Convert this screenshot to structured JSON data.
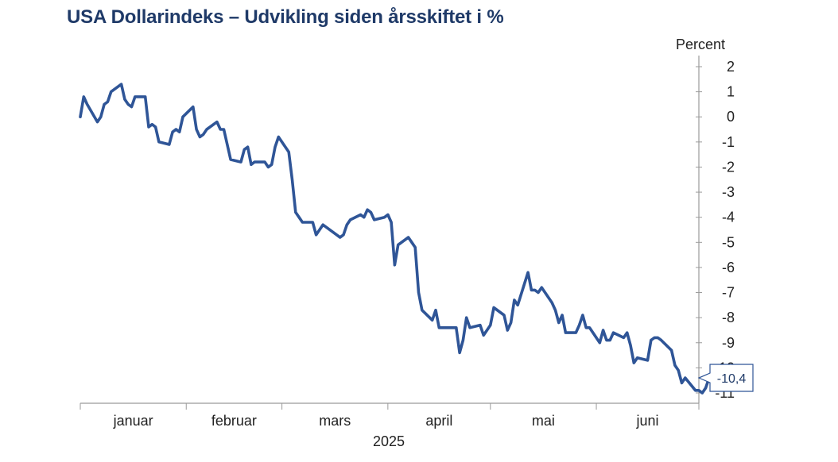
{
  "chart_data": {
    "type": "line",
    "title": "USA Dollarindeks – Udvikling siden årsskiftet i %",
    "xlabel": "2025",
    "ylabel": "Percent",
    "ylim": [
      -11,
      2
    ],
    "yticks": [
      2,
      1,
      0,
      -1,
      -2,
      -3,
      -4,
      -5,
      -6,
      -7,
      -8,
      -9,
      -10,
      -11
    ],
    "xlim": [
      "2025-01-01",
      "2025-06-30"
    ],
    "months": [
      "januar",
      "februar",
      "mars",
      "april",
      "mai",
      "juni"
    ],
    "grid": false,
    "y_axis_position": "right",
    "color": "#2f5597",
    "last_value_label": "-10,4",
    "series": [
      {
        "points": [
          [
            "2025-01-01",
            0.0
          ],
          [
            "2025-01-02",
            0.8
          ],
          [
            "2025-01-03",
            0.5
          ],
          [
            "2025-01-06",
            -0.2
          ],
          [
            "2025-01-07",
            0.0
          ],
          [
            "2025-01-08",
            0.5
          ],
          [
            "2025-01-09",
            0.6
          ],
          [
            "2025-01-10",
            1.0
          ],
          [
            "2025-01-13",
            1.3
          ],
          [
            "2025-01-14",
            0.7
          ],
          [
            "2025-01-15",
            0.5
          ],
          [
            "2025-01-16",
            0.4
          ],
          [
            "2025-01-17",
            0.8
          ],
          [
            "2025-01-20",
            0.8
          ],
          [
            "2025-01-21",
            -0.4
          ],
          [
            "2025-01-22",
            -0.3
          ],
          [
            "2025-01-23",
            -0.4
          ],
          [
            "2025-01-24",
            -1.0
          ],
          [
            "2025-01-27",
            -1.1
          ],
          [
            "2025-01-28",
            -0.6
          ],
          [
            "2025-01-29",
            -0.5
          ],
          [
            "2025-01-30",
            -0.6
          ],
          [
            "2025-01-31",
            0.0
          ],
          [
            "2025-02-03",
            0.4
          ],
          [
            "2025-02-04",
            -0.5
          ],
          [
            "2025-02-05",
            -0.8
          ],
          [
            "2025-02-06",
            -0.7
          ],
          [
            "2025-02-07",
            -0.5
          ],
          [
            "2025-02-10",
            -0.2
          ],
          [
            "2025-02-11",
            -0.5
          ],
          [
            "2025-02-12",
            -0.5
          ],
          [
            "2025-02-13",
            -1.1
          ],
          [
            "2025-02-14",
            -1.7
          ],
          [
            "2025-02-17",
            -1.8
          ],
          [
            "2025-02-18",
            -1.3
          ],
          [
            "2025-02-19",
            -1.2
          ],
          [
            "2025-02-20",
            -1.9
          ],
          [
            "2025-02-21",
            -1.8
          ],
          [
            "2025-02-24",
            -1.8
          ],
          [
            "2025-02-25",
            -2.0
          ],
          [
            "2025-02-26",
            -1.9
          ],
          [
            "2025-02-27",
            -1.2
          ],
          [
            "2025-02-28",
            -0.8
          ],
          [
            "2025-03-03",
            -1.4
          ],
          [
            "2025-03-04",
            -2.5
          ],
          [
            "2025-03-05",
            -3.8
          ],
          [
            "2025-03-06",
            -4.0
          ],
          [
            "2025-03-07",
            -4.2
          ],
          [
            "2025-03-10",
            -4.2
          ],
          [
            "2025-03-11",
            -4.7
          ],
          [
            "2025-03-12",
            -4.5
          ],
          [
            "2025-03-13",
            -4.3
          ],
          [
            "2025-03-14",
            -4.4
          ],
          [
            "2025-03-17",
            -4.7
          ],
          [
            "2025-03-18",
            -4.8
          ],
          [
            "2025-03-19",
            -4.7
          ],
          [
            "2025-03-20",
            -4.3
          ],
          [
            "2025-03-21",
            -4.1
          ],
          [
            "2025-03-24",
            -3.9
          ],
          [
            "2025-03-25",
            -4.0
          ],
          [
            "2025-03-26",
            -3.7
          ],
          [
            "2025-03-27",
            -3.8
          ],
          [
            "2025-03-28",
            -4.1
          ],
          [
            "2025-03-31",
            -4.0
          ],
          [
            "2025-04-01",
            -3.9
          ],
          [
            "2025-04-02",
            -4.2
          ],
          [
            "2025-04-03",
            -5.9
          ],
          [
            "2025-04-04",
            -5.1
          ],
          [
            "2025-04-07",
            -4.8
          ],
          [
            "2025-04-08",
            -5.0
          ],
          [
            "2025-04-09",
            -5.2
          ],
          [
            "2025-04-10",
            -7.0
          ],
          [
            "2025-04-11",
            -7.7
          ],
          [
            "2025-04-14",
            -8.1
          ],
          [
            "2025-04-15",
            -7.7
          ],
          [
            "2025-04-16",
            -8.4
          ],
          [
            "2025-04-17",
            -8.4
          ],
          [
            "2025-04-21",
            -8.4
          ],
          [
            "2025-04-22",
            -9.4
          ],
          [
            "2025-04-23",
            -8.9
          ],
          [
            "2025-04-24",
            -8.0
          ],
          [
            "2025-04-25",
            -8.4
          ],
          [
            "2025-04-28",
            -8.3
          ],
          [
            "2025-04-29",
            -8.7
          ],
          [
            "2025-04-30",
            -8.5
          ],
          [
            "2025-05-01",
            -8.3
          ],
          [
            "2025-05-02",
            -7.6
          ],
          [
            "2025-05-05",
            -7.9
          ],
          [
            "2025-05-06",
            -8.5
          ],
          [
            "2025-05-07",
            -8.2
          ],
          [
            "2025-05-08",
            -7.3
          ],
          [
            "2025-05-09",
            -7.5
          ],
          [
            "2025-05-12",
            -6.2
          ],
          [
            "2025-05-13",
            -6.9
          ],
          [
            "2025-05-14",
            -6.9
          ],
          [
            "2025-05-15",
            -7.0
          ],
          [
            "2025-05-16",
            -6.8
          ],
          [
            "2025-05-19",
            -7.4
          ],
          [
            "2025-05-20",
            -7.7
          ],
          [
            "2025-05-21",
            -8.2
          ],
          [
            "2025-05-22",
            -7.9
          ],
          [
            "2025-05-23",
            -8.6
          ],
          [
            "2025-05-26",
            -8.6
          ],
          [
            "2025-05-27",
            -8.3
          ],
          [
            "2025-05-28",
            -7.9
          ],
          [
            "2025-05-29",
            -8.4
          ],
          [
            "2025-05-30",
            -8.4
          ],
          [
            "2025-06-02",
            -9.0
          ],
          [
            "2025-06-03",
            -8.5
          ],
          [
            "2025-06-04",
            -8.9
          ],
          [
            "2025-06-05",
            -8.9
          ],
          [
            "2025-06-06",
            -8.6
          ],
          [
            "2025-06-09",
            -8.8
          ],
          [
            "2025-06-10",
            -8.6
          ],
          [
            "2025-06-11",
            -9.1
          ],
          [
            "2025-06-12",
            -9.8
          ],
          [
            "2025-06-13",
            -9.6
          ],
          [
            "2025-06-16",
            -9.7
          ],
          [
            "2025-06-17",
            -8.9
          ],
          [
            "2025-06-18",
            -8.8
          ],
          [
            "2025-06-19",
            -8.8
          ],
          [
            "2025-06-20",
            -8.9
          ],
          [
            "2025-06-23",
            -9.3
          ],
          [
            "2025-06-24",
            -9.9
          ],
          [
            "2025-06-25",
            -10.1
          ],
          [
            "2025-06-26",
            -10.6
          ],
          [
            "2025-06-27",
            -10.4
          ],
          [
            "2025-06-30",
            -10.9
          ],
          [
            "2025-07-01",
            -10.9
          ],
          [
            "2025-07-02",
            -11.0
          ],
          [
            "2025-07-03",
            -10.8
          ],
          [
            "2025-07-04",
            -10.4
          ]
        ]
      }
    ]
  }
}
